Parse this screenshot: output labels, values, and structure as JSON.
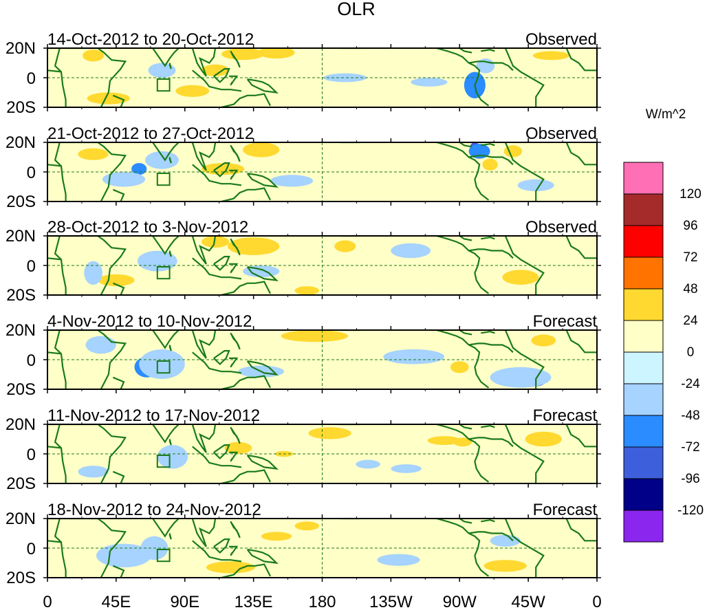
{
  "chart_data": {
    "type": "heatmap",
    "title": "OLR",
    "units": "W/m^2",
    "x_ticks": [
      "0",
      "45E",
      "90E",
      "135E",
      "180",
      "135W",
      "90W",
      "45W",
      "0"
    ],
    "x_range_deg_east": [
      0,
      360
    ],
    "y_ticks": [
      "20N",
      "0",
      "20S"
    ],
    "y_range_deg": [
      -20,
      20
    ],
    "panels": [
      {
        "period": "14-Oct-2012 to 20-Oct-2012",
        "status": "Observed"
      },
      {
        "period": "21-Oct-2012 to 27-Oct-2012",
        "status": "Observed"
      },
      {
        "period": "28-Oct-2012 to 3-Nov-2012",
        "status": "Observed"
      },
      {
        "period": "4-Nov-2012 to 10-Nov-2012",
        "status": "Forecast"
      },
      {
        "period": "11-Nov-2012 to 17-Nov-2012",
        "status": "Forecast"
      },
      {
        "period": "18-Nov-2012 to 24-Nov-2012",
        "status": "Forecast"
      }
    ],
    "colorbar": {
      "labels": [
        "120",
        "96",
        "72",
        "48",
        "24",
        "0",
        "-24",
        "-48",
        "-72",
        "-96",
        "-120"
      ],
      "colors": [
        "#ff6fb5",
        "#a52a2a",
        "#ff0000",
        "#ff7300",
        "#ffd92f",
        "#ffffc8",
        "#ccf5ff",
        "#a6d3ff",
        "#2a8cff",
        "#3e5fdc",
        "#000088",
        "#8b26ef"
      ]
    },
    "anomaly_regions": [
      [
        {
          "lon": 128,
          "lat": 16,
          "rx": 14,
          "ry": 4,
          "v": 30
        },
        {
          "lon": 150,
          "lat": 17,
          "rx": 12,
          "ry": 4,
          "v": 30
        },
        {
          "lon": 30,
          "lat": 15,
          "rx": 7,
          "ry": 4,
          "v": 30
        },
        {
          "lon": 110,
          "lat": 5,
          "rx": 9,
          "ry": 4,
          "v": 30
        },
        {
          "lon": 280,
          "lat": -5,
          "rx": 7,
          "ry": 9,
          "v": -50
        },
        {
          "lon": 287,
          "lat": 8,
          "rx": 6,
          "ry": 5,
          "v": -30
        },
        {
          "lon": 75,
          "lat": 5,
          "rx": 9,
          "ry": 5,
          "v": -30
        },
        {
          "lon": 195,
          "lat": 0,
          "rx": 14,
          "ry": 3,
          "v": -30
        },
        {
          "lon": 95,
          "lat": -9,
          "rx": 11,
          "ry": 4,
          "v": 30
        },
        {
          "lon": 40,
          "lat": -14,
          "rx": 14,
          "ry": 4,
          "v": 30
        },
        {
          "lon": 330,
          "lat": 15,
          "rx": 12,
          "ry": 3,
          "v": 30
        },
        {
          "lon": 250,
          "lat": -3,
          "rx": 12,
          "ry": 3,
          "v": -30
        }
      ],
      [
        {
          "lon": 60,
          "lat": 2,
          "rx": 5,
          "ry": 4,
          "v": -60
        },
        {
          "lon": 75,
          "lat": 8,
          "rx": 11,
          "ry": 6,
          "v": -30
        },
        {
          "lon": 50,
          "lat": -5,
          "rx": 14,
          "ry": 5,
          "v": -30
        },
        {
          "lon": 280,
          "lat": 17,
          "rx": 3,
          "ry": 3,
          "v": -90
        },
        {
          "lon": 283,
          "lat": 14,
          "rx": 7,
          "ry": 5,
          "v": -60
        },
        {
          "lon": 140,
          "lat": 15,
          "rx": 12,
          "ry": 5,
          "v": 30
        },
        {
          "lon": 115,
          "lat": 2,
          "rx": 14,
          "ry": 4,
          "v": 30
        },
        {
          "lon": 290,
          "lat": 5,
          "rx": 5,
          "ry": 4,
          "v": 30
        },
        {
          "lon": 305,
          "lat": 14,
          "rx": 6,
          "ry": 4,
          "v": 30
        },
        {
          "lon": 160,
          "lat": -6,
          "rx": 14,
          "ry": 4,
          "v": -30
        },
        {
          "lon": 320,
          "lat": -9,
          "rx": 12,
          "ry": 4,
          "v": -30
        },
        {
          "lon": 30,
          "lat": 12,
          "rx": 10,
          "ry": 4,
          "v": 30
        }
      ],
      [
        {
          "lon": 77,
          "lat": 5,
          "rx": 4,
          "ry": 4,
          "v": -60
        },
        {
          "lon": 72,
          "lat": 3,
          "rx": 13,
          "ry": 7,
          "v": -30
        },
        {
          "lon": 242,
          "lat": 11,
          "rx": 7,
          "ry": 3,
          "v": -70
        },
        {
          "lon": 238,
          "lat": 10,
          "rx": 13,
          "ry": 5,
          "v": -30
        },
        {
          "lon": 135,
          "lat": 13,
          "rx": 17,
          "ry": 6,
          "v": 30
        },
        {
          "lon": 110,
          "lat": 16,
          "rx": 9,
          "ry": 4,
          "v": 30
        },
        {
          "lon": 195,
          "lat": 13,
          "rx": 7,
          "ry": 4,
          "v": 30
        },
        {
          "lon": 140,
          "lat": -4,
          "rx": 12,
          "ry": 4,
          "v": -30
        },
        {
          "lon": 45,
          "lat": -10,
          "rx": 12,
          "ry": 4,
          "v": 30
        },
        {
          "lon": 310,
          "lat": -8,
          "rx": 12,
          "ry": 5,
          "v": 30
        },
        {
          "lon": 170,
          "lat": -17,
          "rx": 8,
          "ry": 3,
          "v": 30
        },
        {
          "lon": 30,
          "lat": -5,
          "rx": 6,
          "ry": 8,
          "v": -30
        }
      ],
      [
        {
          "lon": 65,
          "lat": -5,
          "rx": 8,
          "ry": 7,
          "v": -60
        },
        {
          "lon": 75,
          "lat": -3,
          "rx": 15,
          "ry": 10,
          "v": -30
        },
        {
          "lon": 315,
          "lat": -13,
          "rx": 9,
          "ry": 4,
          "v": -60
        },
        {
          "lon": 320,
          "lat": -15,
          "rx": 6,
          "ry": 3,
          "v": -75
        },
        {
          "lon": 310,
          "lat": -12,
          "rx": 20,
          "ry": 7,
          "v": -30
        },
        {
          "lon": 175,
          "lat": 16,
          "rx": 22,
          "ry": 4,
          "v": 30
        },
        {
          "lon": 325,
          "lat": 13,
          "rx": 8,
          "ry": 4,
          "v": 30
        },
        {
          "lon": 240,
          "lat": 2,
          "rx": 20,
          "ry": 5,
          "v": -30
        },
        {
          "lon": 140,
          "lat": -8,
          "rx": 15,
          "ry": 4,
          "v": -30
        },
        {
          "lon": 270,
          "lat": -5,
          "rx": 6,
          "ry": 4,
          "v": 30
        },
        {
          "lon": 35,
          "lat": 10,
          "rx": 10,
          "ry": 6,
          "v": -30
        }
      ],
      [
        {
          "lon": 82,
          "lat": -2,
          "rx": 10,
          "ry": 8,
          "v": -30
        },
        {
          "lon": 260,
          "lat": 9,
          "rx": 11,
          "ry": 3,
          "v": 30
        },
        {
          "lon": 272,
          "lat": 8,
          "rx": 6,
          "ry": 3,
          "v": 35
        },
        {
          "lon": 210,
          "lat": -7,
          "rx": 8,
          "ry": 3,
          "v": -30
        },
        {
          "lon": 235,
          "lat": -10,
          "rx": 10,
          "ry": 3,
          "v": -30
        },
        {
          "lon": 125,
          "lat": 4,
          "rx": 9,
          "ry": 4,
          "v": 30
        },
        {
          "lon": 185,
          "lat": 14,
          "rx": 14,
          "ry": 4,
          "v": 30
        },
        {
          "lon": 325,
          "lat": 10,
          "rx": 12,
          "ry": 5,
          "v": 30
        },
        {
          "lon": 155,
          "lat": 0,
          "rx": 6,
          "ry": 2,
          "v": 30
        },
        {
          "lon": 30,
          "lat": -12,
          "rx": 10,
          "ry": 4,
          "v": -30
        }
      ],
      [
        {
          "lon": 70,
          "lat": 0,
          "rx": 9,
          "ry": 8,
          "v": -30
        },
        {
          "lon": 150,
          "lat": 8,
          "rx": 10,
          "ry": 3,
          "v": 30
        },
        {
          "lon": 170,
          "lat": 15,
          "rx": 8,
          "ry": 3,
          "v": 30
        },
        {
          "lon": 50,
          "lat": -5,
          "rx": 18,
          "ry": 8,
          "v": -30
        },
        {
          "lon": 230,
          "lat": -8,
          "rx": 14,
          "ry": 4,
          "v": -30
        },
        {
          "lon": 300,
          "lat": 5,
          "rx": 10,
          "ry": 4,
          "v": -30
        },
        {
          "lon": 300,
          "lat": -12,
          "rx": 14,
          "ry": 4,
          "v": 30
        },
        {
          "lon": 120,
          "lat": -13,
          "rx": 16,
          "ry": 4,
          "v": 30
        }
      ]
    ]
  }
}
